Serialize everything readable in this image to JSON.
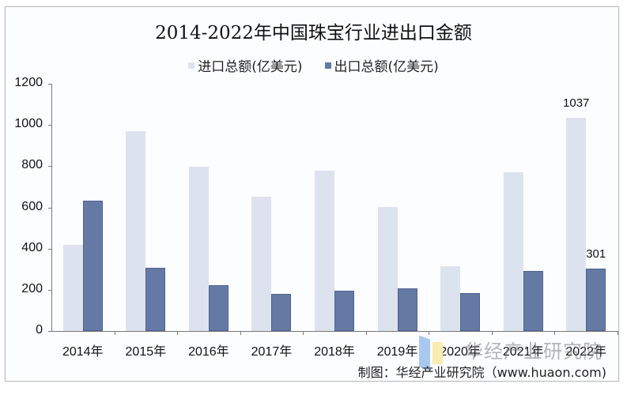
{
  "chart_data": {
    "type": "bar",
    "title": "2014-2022年中国珠宝行业进出口金额",
    "xlabel": "",
    "ylabel": "",
    "ylim": [
      0,
      1200
    ],
    "yticks": [
      0,
      200,
      400,
      600,
      800,
      1000,
      1200
    ],
    "grid": false,
    "legend_position": "top",
    "categories": [
      "2014年",
      "2015年",
      "2016年",
      "2017年",
      "2018年",
      "2019年",
      "2020年",
      "2021年",
      "2022年"
    ],
    "series": [
      {
        "name": "进口总额(亿美元)",
        "color": "#dde3ee",
        "values": [
          417,
          970,
          798,
          652,
          778,
          602,
          316,
          772,
          1037
        ]
      },
      {
        "name": "出口总额(亿美元)",
        "color": "#6479a4",
        "values": [
          633,
          307,
          222,
          180,
          196,
          207,
          185,
          291,
          301
        ]
      }
    ],
    "annotations": [
      {
        "series": "进口总额(亿美元)",
        "category": "2022年",
        "text": "1037"
      },
      {
        "series": "出口总额(亿美元)",
        "category": "2022年",
        "text": "301"
      }
    ]
  },
  "title": "2014-2022年中国珠宝行业进出口金额",
  "legend": [
    {
      "label": "进口总额(亿美元)",
      "color": "#dde3ee"
    },
    {
      "label": "出口总额(亿美元)",
      "color": "#6479a4"
    }
  ],
  "yticks": [
    "0",
    "200",
    "400",
    "600",
    "800",
    "1000",
    "1200"
  ],
  "source": "制图：华经产业研究院（www.huaon.com)",
  "watermark": "华经产业研究院"
}
